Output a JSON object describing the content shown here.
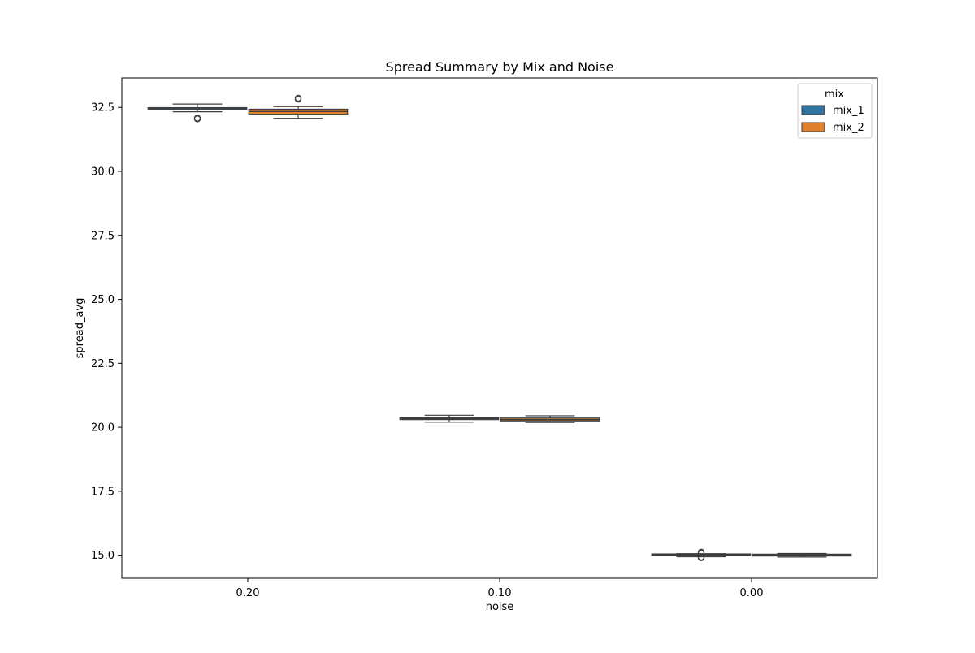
{
  "chart_data": {
    "type": "box",
    "title": "Spread Summary by Mix and Noise",
    "xlabel": "noise",
    "ylabel": "spread_avg",
    "categories": [
      "0.20",
      "0.10",
      "0.00"
    ],
    "ylim": [
      14.1,
      33.65
    ],
    "yticks": [
      15.0,
      17.5,
      20.0,
      22.5,
      25.0,
      27.5,
      30.0,
      32.5
    ],
    "ytick_labels": [
      "15.0",
      "17.5",
      "20.0",
      "22.5",
      "25.0",
      "27.5",
      "30.0",
      "32.5"
    ],
    "grid": false,
    "legend": {
      "title": "mix",
      "placement": "top-right"
    },
    "series": [
      {
        "name": "mix_1",
        "color": "#3274a1",
        "boxes": [
          {
            "category": "0.20",
            "whisker_low": 32.33,
            "q1": 32.42,
            "median": 32.47,
            "q3": 32.49,
            "whisker_high": 32.63,
            "outliers": [
              32.05,
              32.08
            ]
          },
          {
            "category": "0.10",
            "whisker_low": 20.2,
            "q1": 20.3,
            "median": 20.34,
            "q3": 20.38,
            "whisker_high": 20.47,
            "outliers": []
          },
          {
            "category": "0.00",
            "whisker_low": 14.94,
            "q1": 15.0,
            "median": 15.02,
            "q3": 15.05,
            "whisker_high": 15.06,
            "outliers": [
              14.9,
              14.93,
              15.08,
              15.12
            ]
          }
        ]
      },
      {
        "name": "mix_2",
        "color": "#e1812c",
        "boxes": [
          {
            "category": "0.20",
            "whisker_low": 32.07,
            "q1": 32.23,
            "median": 32.34,
            "q3": 32.43,
            "whisker_high": 32.53,
            "outliers": [
              32.82,
              32.86
            ]
          },
          {
            "category": "0.10",
            "whisker_low": 20.19,
            "q1": 20.25,
            "median": 20.3,
            "q3": 20.36,
            "whisker_high": 20.45,
            "outliers": []
          },
          {
            "category": "0.00",
            "whisker_low": 14.93,
            "q1": 14.97,
            "median": 15.0,
            "q3": 15.04,
            "whisker_high": 15.07,
            "outliers": []
          }
        ]
      }
    ]
  }
}
